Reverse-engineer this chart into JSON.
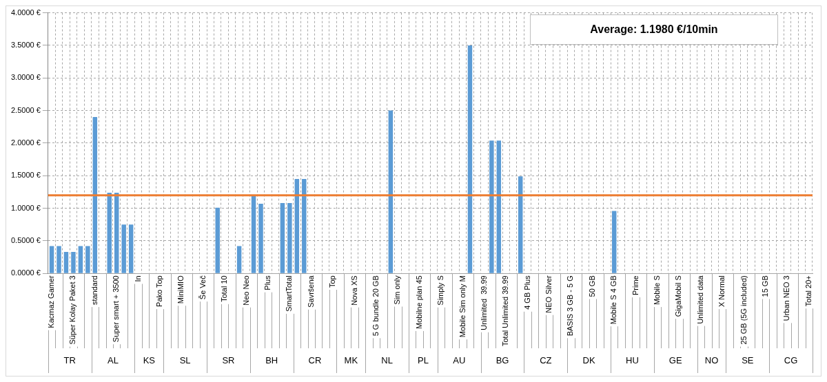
{
  "chart_data": {
    "type": "bar",
    "categories": [
      "Kacmaz Gamer",
      null,
      null,
      "Süper Kolay Paket 3",
      null,
      null,
      "standard",
      null,
      null,
      "Super smart + 3500",
      null,
      null,
      "In",
      null,
      null,
      "Pako Top",
      null,
      null,
      "MiniMIO",
      null,
      null,
      "Še Več",
      null,
      null,
      "Total 10",
      null,
      null,
      "Neo Neo",
      null,
      null,
      "Plus",
      null,
      null,
      "SmartTotal",
      null,
      null,
      "Savršena",
      null,
      null,
      "Top",
      null,
      null,
      "Nova XS",
      null,
      null,
      "5 G bundle 20 GB",
      null,
      null,
      "Sim only",
      null,
      null,
      "Mobilne plan 45",
      null,
      null,
      "Simply S",
      null,
      null,
      "Mobile Sim only M",
      null,
      null,
      "Unlimited  39.99",
      null,
      null,
      "Total Unlimited 39.99",
      null,
      null,
      "4 GB Plus",
      null,
      null,
      "NEO Silver",
      null,
      null,
      "BASIS 3 GB - 5 G",
      null,
      null,
      "50 GB",
      null,
      null,
      "Mobile S 4 GB",
      null,
      null,
      "Prime",
      null,
      null,
      "Mobile S",
      null,
      null,
      "GigaMobil S",
      null,
      null,
      "Unlimited data",
      null,
      null,
      "X Normal",
      null,
      null,
      "25 GB (5G included)",
      null,
      null,
      "15 GB",
      null,
      null,
      "Urban NEO 3",
      null,
      null,
      "Total 20+"
    ],
    "series": [
      {
        "color": "#5b9bd5",
        "values": [
          0.42,
          0.42,
          0.33,
          0.33,
          0.42,
          0.42,
          2.4,
          null,
          1.24,
          1.24,
          0.75,
          0.75,
          null,
          null,
          null,
          null,
          null,
          null,
          null,
          null,
          null,
          null,
          null,
          1.01,
          null,
          null,
          0.42,
          null,
          1.19,
          1.07,
          null,
          null,
          1.08,
          1.08,
          1.45,
          1.45,
          null,
          null,
          null,
          null,
          null,
          null,
          null,
          null,
          null,
          null,
          null,
          2.5,
          null,
          null,
          null,
          null,
          null,
          null,
          null,
          null,
          null,
          null,
          3.5,
          null,
          null,
          2.04,
          2.04,
          null,
          null,
          1.49,
          null,
          null,
          null,
          null,
          null,
          null,
          null,
          null,
          null,
          null,
          null,
          null,
          0.96,
          null,
          null,
          null,
          null,
          null,
          null,
          null,
          null,
          null,
          null,
          null,
          null,
          null,
          null,
          null,
          null,
          null,
          null,
          null,
          null,
          null,
          null,
          null,
          null,
          null,
          null,
          null
        ]
      }
    ],
    "ylim": [
      0,
      4
    ],
    "yticks": [
      {
        "value": 0,
        "label": "0.0000 €"
      },
      {
        "value": 0.5,
        "label": "0.5000 €"
      },
      {
        "value": 1,
        "label": "1.0000 €"
      },
      {
        "value": 1.5,
        "label": "1.5000 €"
      },
      {
        "value": 2,
        "label": "2.0000 €"
      },
      {
        "value": 2.5,
        "label": "2.5000 €"
      },
      {
        "value": 3,
        "label": "3.0000 €"
      },
      {
        "value": 3.5,
        "label": "3.5000 €"
      },
      {
        "value": 4,
        "label": "4.0000 €"
      }
    ],
    "grid": true,
    "legend": false,
    "ref_lines": [
      {
        "axis": "y",
        "value": 1.198,
        "color": "#ed7d31"
      }
    ],
    "annotations": [
      "Average: 1.1980 €/10min",
      "TR",
      "AL",
      "KS",
      "SL",
      "SR",
      "BH",
      "CR",
      "MK",
      "NL",
      "PL",
      "AU",
      "BG",
      "CZ",
      "DK",
      "HU",
      "GE",
      "NO",
      "SE",
      "CG"
    ]
  }
}
